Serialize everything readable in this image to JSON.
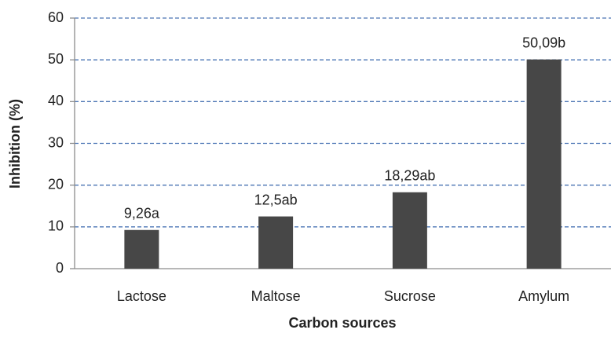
{
  "chart_data": {
    "type": "bar",
    "x_label": "Carbon sources",
    "y_label": "Inhibition (%)",
    "categories": [
      "Lactose",
      "Maltose",
      "Sucrose",
      "Amylum"
    ],
    "values": [
      9.26,
      12.5,
      18.29,
      50.09
    ],
    "value_labels": [
      "9,26a",
      "12,5ab",
      "18,29ab",
      "50,09b"
    ],
    "color": "#474747",
    "ylim": [
      0,
      60
    ],
    "yticks": [
      0,
      10,
      20,
      30,
      40,
      50,
      60
    ],
    "grid": true
  }
}
